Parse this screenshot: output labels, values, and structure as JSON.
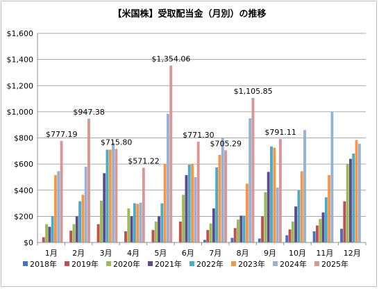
{
  "chart_data": {
    "type": "bar",
    "title": "【米国株】受取配当金（月別）の推移",
    "categories": [
      "1月",
      "2月",
      "3月",
      "4月",
      "5月",
      "6月",
      "7月",
      "8月",
      "9月",
      "10月",
      "11月",
      "12月"
    ],
    "y_tick_labels": [
      "$0",
      "$200",
      "$400",
      "$600",
      "$800",
      "$1,000",
      "$1,200",
      "$1,400",
      "$1,600"
    ],
    "ylim": [
      0,
      1600
    ],
    "grid": true,
    "legend_position": "bottom",
    "series": [
      {
        "name": "2018年",
        "color": "#4472c4",
        "values": [
          null,
          null,
          null,
          null,
          null,
          null,
          20,
          35,
          30,
          55,
          85,
          105
        ]
      },
      {
        "name": "2019年",
        "color": "#c0504d",
        "values": [
          40,
          90,
          140,
          85,
          95,
          160,
          95,
          110,
          200,
          100,
          130,
          315
        ]
      },
      {
        "name": "2020年",
        "color": "#9bbb59",
        "values": [
          140,
          140,
          320,
          260,
          160,
          365,
          145,
          175,
          385,
          160,
          180,
          600
        ]
      },
      {
        "name": "2021年",
        "color": "#5e4b8b",
        "values": [
          120,
          200,
          530,
          200,
          200,
          515,
          260,
          205,
          540,
          275,
          230,
          640
        ]
      },
      {
        "name": "2022年",
        "color": "#4bacc6",
        "values": [
          200,
          315,
          710,
          300,
          300,
          595,
          575,
          205,
          735,
          400,
          345,
          680
        ]
      },
      {
        "name": "2023年",
        "color": "#f79646",
        "values": [
          515,
          365,
          710,
          295,
          600,
          600,
          670,
          450,
          725,
          545,
          515,
          785
        ]
      },
      {
        "name": "2024年",
        "color": "#95b3d7",
        "values": [
          545,
          580,
          760,
          305,
          985,
          500,
          800,
          950,
          420,
          860,
          1000,
          755
        ]
      },
      {
        "name": "2025年",
        "color": "#d99694",
        "values": [
          777.19,
          947.38,
          715.8,
          571.22,
          1354.06,
          771.3,
          705.29,
          1105.85,
          791.11,
          null,
          null,
          null
        ]
      }
    ],
    "annotations": [
      {
        "category": "1月",
        "text": "$777.19"
      },
      {
        "category": "2月",
        "text": "$947.38"
      },
      {
        "category": "3月",
        "text": "$715.80"
      },
      {
        "category": "4月",
        "text": "$571.22"
      },
      {
        "category": "5月",
        "text": "$1,354.06"
      },
      {
        "category": "6月",
        "text": "$771.30"
      },
      {
        "category": "7月",
        "text": "$705.29"
      },
      {
        "category": "8月",
        "text": "$1,105.85"
      },
      {
        "category": "9月",
        "text": "$791.11"
      }
    ]
  }
}
